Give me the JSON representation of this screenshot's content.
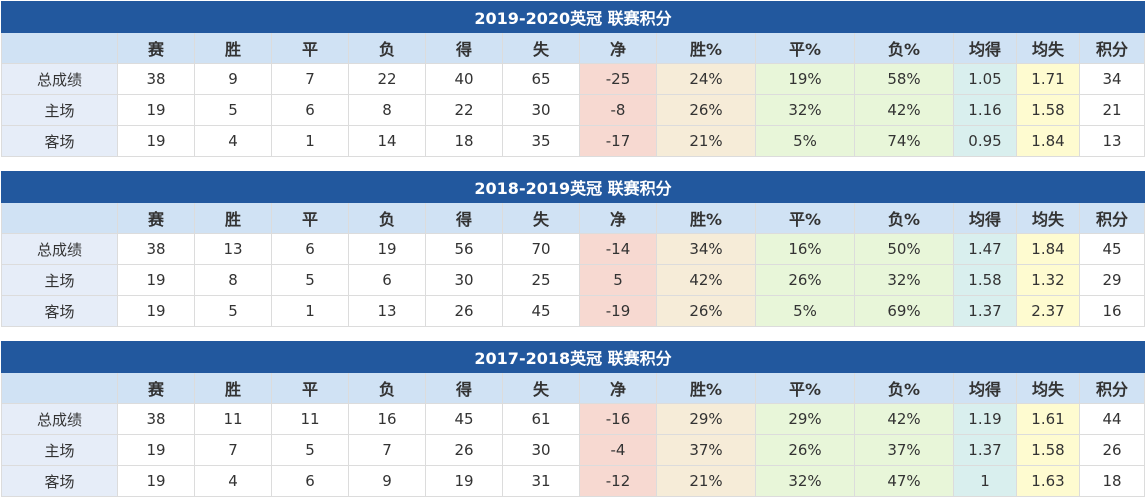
{
  "headers": [
    "",
    "赛",
    "胜",
    "平",
    "负",
    "得",
    "失",
    "净",
    "胜%",
    "平%",
    "负%",
    "均得",
    "均失",
    "积分"
  ],
  "colors": {
    "title_bg": "#22589e",
    "header_bg": "#d0e2f4",
    "win_pct": "#f7d9d1",
    "draw_pct": "#f6ecd8",
    "loss_pct": "#e8f6d9",
    "avg_for": "#e8f6d9",
    "avg_against": "#d9efee",
    "points": "#fefbd0"
  },
  "tables": [
    {
      "title": "2019-2020英冠 联赛积分",
      "rows": [
        [
          "总成绩",
          "38",
          "9",
          "7",
          "22",
          "40",
          "65",
          "-25",
          "24%",
          "19%",
          "58%",
          "1.05",
          "1.71",
          "34"
        ],
        [
          "主场",
          "19",
          "5",
          "6",
          "8",
          "22",
          "30",
          "-8",
          "26%",
          "32%",
          "42%",
          "1.16",
          "1.58",
          "21"
        ],
        [
          "客场",
          "19",
          "4",
          "1",
          "14",
          "18",
          "35",
          "-17",
          "21%",
          "5%",
          "74%",
          "0.95",
          "1.84",
          "13"
        ]
      ]
    },
    {
      "title": "2018-2019英冠 联赛积分",
      "rows": [
        [
          "总成绩",
          "38",
          "13",
          "6",
          "19",
          "56",
          "70",
          "-14",
          "34%",
          "16%",
          "50%",
          "1.47",
          "1.84",
          "45"
        ],
        [
          "主场",
          "19",
          "8",
          "5",
          "6",
          "30",
          "25",
          "5",
          "42%",
          "26%",
          "32%",
          "1.58",
          "1.32",
          "29"
        ],
        [
          "客场",
          "19",
          "5",
          "1",
          "13",
          "26",
          "45",
          "-19",
          "26%",
          "5%",
          "69%",
          "1.37",
          "2.37",
          "16"
        ]
      ]
    },
    {
      "title": "2017-2018英冠 联赛积分",
      "rows": [
        [
          "总成绩",
          "38",
          "11",
          "11",
          "16",
          "45",
          "61",
          "-16",
          "29%",
          "29%",
          "42%",
          "1.19",
          "1.61",
          "44"
        ],
        [
          "主场",
          "19",
          "7",
          "5",
          "7",
          "26",
          "30",
          "-4",
          "37%",
          "26%",
          "37%",
          "1.37",
          "1.58",
          "26"
        ],
        [
          "客场",
          "19",
          "4",
          "6",
          "9",
          "19",
          "31",
          "-12",
          "21%",
          "32%",
          "47%",
          "1",
          "1.63",
          "18"
        ]
      ]
    }
  ]
}
